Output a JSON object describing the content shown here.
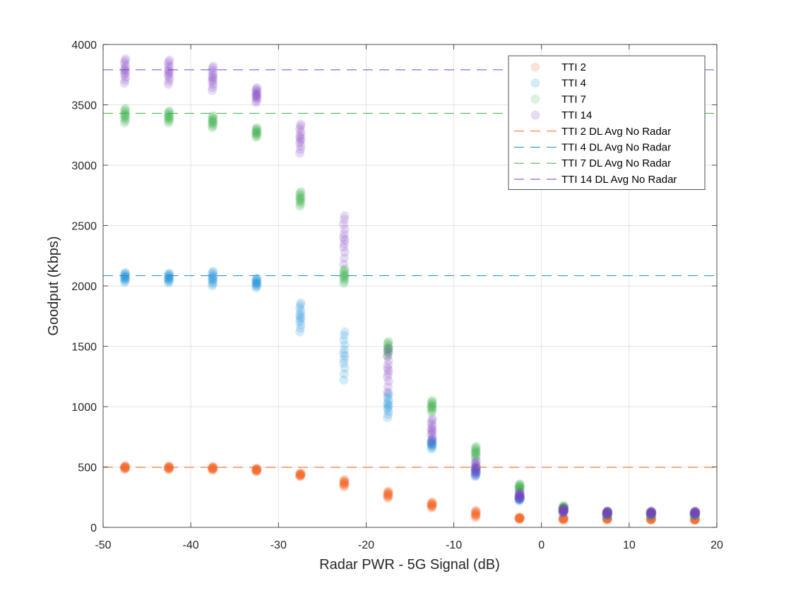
{
  "chart_data": {
    "type": "scatter",
    "xlabel": "Radar PWR - 5G Signal (dB)",
    "ylabel": "Goodput (Kbps)",
    "xlim": [
      -50,
      20
    ],
    "ylim": [
      0,
      4000
    ],
    "x_ticks": [
      "-50",
      "-40",
      "-30",
      "-20",
      "-10",
      "0",
      "10",
      "20"
    ],
    "y_ticks": [
      "0",
      "500",
      "1000",
      "1500",
      "2000",
      "2500",
      "3000",
      "3500",
      "4000"
    ],
    "grid": true,
    "legend_position": "top-right",
    "x": [
      -47.5,
      -42.5,
      -37.5,
      -32.5,
      -27.5,
      -22.5,
      -17.5,
      -12.5,
      -7.5,
      -2.5,
      2.5,
      7.5,
      12.5,
      17.5
    ],
    "series": [
      {
        "name": "TTI 2",
        "color": "#F26522",
        "values": [
          495,
          493,
          488,
          475,
          435,
          365,
          270,
          185,
          110,
          75,
          70,
          70,
          68,
          65
        ],
        "spread": [
          15,
          15,
          15,
          15,
          15,
          30,
          30,
          25,
          30,
          10,
          10,
          8,
          8,
          8
        ]
      },
      {
        "name": "TTI 4",
        "color": "#1A8FD8",
        "values": [
          2070,
          2065,
          2060,
          2025,
          1740,
          1420,
          1010,
          690,
          460,
          240,
          140,
          110,
          110,
          110
        ],
        "spread": [
          40,
          40,
          60,
          40,
          120,
          200,
          100,
          40,
          40,
          20,
          20,
          15,
          15,
          15
        ]
      },
      {
        "name": "TTI 7",
        "color": "#3CB44B",
        "values": [
          3410,
          3400,
          3360,
          3270,
          2720,
          2080,
          1480,
          1000,
          620,
          330,
          160,
          120,
          115,
          115
        ],
        "spread": [
          60,
          50,
          50,
          40,
          60,
          60,
          60,
          50,
          50,
          30,
          20,
          15,
          15,
          15
        ]
      },
      {
        "name": "TTI 14",
        "color": "#7E3FC4",
        "values": [
          3780,
          3770,
          3720,
          3580,
          3220,
          2380,
          1300,
          800,
          490,
          260,
          140,
          120,
          120,
          120
        ],
        "spread": [
          100,
          100,
          100,
          60,
          120,
          200,
          180,
          100,
          60,
          30,
          20,
          15,
          15,
          15
        ]
      }
    ],
    "reference_lines": [
      {
        "name": "TTI 2 DL Avg No Radar",
        "color": "#F26522",
        "value": 497
      },
      {
        "name": "TTI 4 DL Avg No Radar",
        "color": "#1A8FD8",
        "value": 2085
      },
      {
        "name": "TTI 7 DL Avg No Radar",
        "color": "#3CB44B",
        "value": 3430
      },
      {
        "name": "TTI 14 DL Avg No Radar",
        "color": "#7E3FC4",
        "value": 3790
      }
    ]
  }
}
